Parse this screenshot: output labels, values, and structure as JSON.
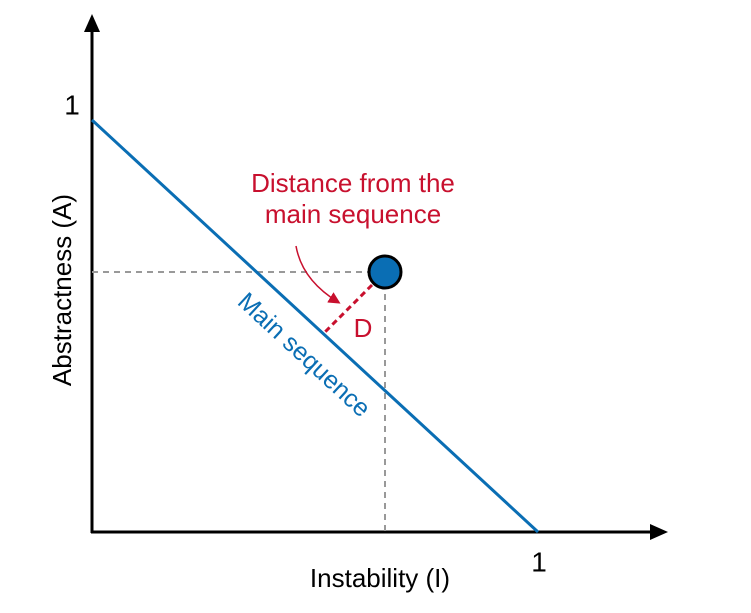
{
  "diagram": {
    "y_axis_label": "Abstractness (A)",
    "x_axis_label": "Instability (I)",
    "y_tick_label": "1",
    "x_tick_label": "1",
    "line_label": "Main sequence",
    "annotation": [
      "Distance from the",
      "main sequence"
    ],
    "distance_label": "D"
  }
}
